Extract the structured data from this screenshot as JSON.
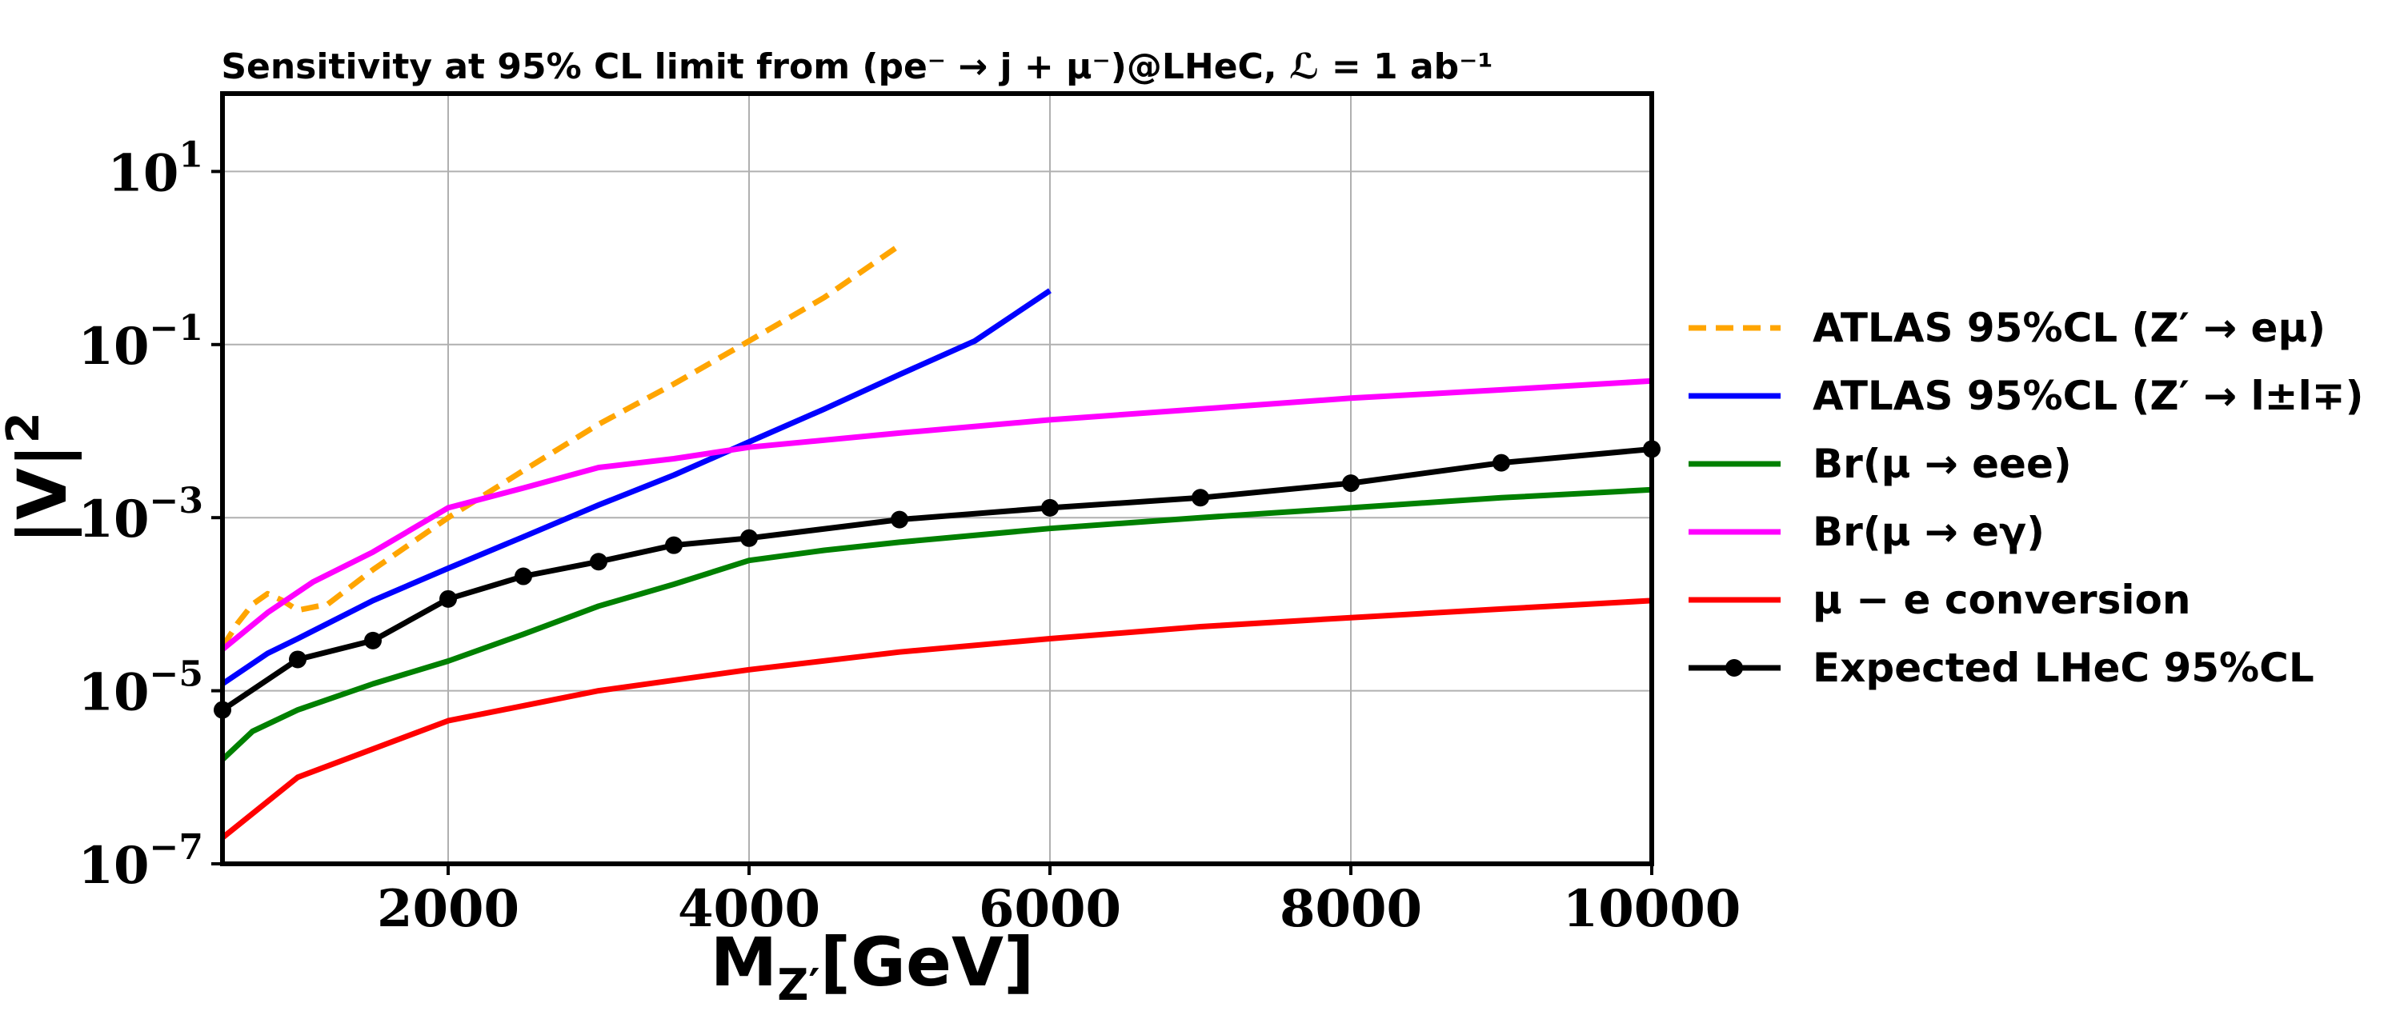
{
  "chart_data": {
    "type": "line",
    "title": "Sensitivity at 95% CL limit from (pe⁻ → j + μ⁻)@LHeC, ℒ = 1 ab⁻¹",
    "xlabel": "M_Z′[GeV]",
    "ylabel": "|V|²",
    "xlim": [
      500,
      10000
    ],
    "ylim_log10": [
      -7,
      1.9
    ],
    "yscale": "log",
    "grid": true,
    "legend_position": "outside-right",
    "x_ticks": [
      {
        "value": 2000,
        "label": "2000"
      },
      {
        "value": 4000,
        "label": "4000"
      },
      {
        "value": 6000,
        "label": "6000"
      },
      {
        "value": 8000,
        "label": "8000"
      },
      {
        "value": 10000,
        "label": "10000"
      }
    ],
    "y_ticks": [
      {
        "exp": 1,
        "label": "10",
        "sup": "1"
      },
      {
        "exp": -1,
        "label": "10",
        "sup": "−1"
      },
      {
        "exp": -3,
        "label": "10",
        "sup": "−3"
      },
      {
        "exp": -5,
        "label": "10",
        "sup": "−5"
      },
      {
        "exp": -7,
        "label": "10",
        "sup": "−7"
      }
    ],
    "series": [
      {
        "name": "ATLAS 95%CL (Z′ → eμ)",
        "color": "#FFA500",
        "style": "dashed",
        "x": [
          500,
          600,
          700,
          800,
          900,
          1000,
          1200,
          1500,
          2000,
          2500,
          3000,
          3500,
          4000,
          4500,
          5000
        ],
        "y": [
          3.2e-05,
          6e-05,
          0.0001,
          0.000132,
          0.00011,
          8.5e-05,
          0.0001,
          0.00025,
          0.001,
          0.0035,
          0.012,
          0.035,
          0.11,
          0.35,
          1.4
        ]
      },
      {
        "name": "ATLAS 95%CL (Z′ → l±l∓)",
        "color": "#0000FF",
        "style": "solid",
        "x": [
          500,
          800,
          1000,
          1500,
          2000,
          2500,
          3000,
          3500,
          4000,
          4500,
          5000,
          5500,
          6000
        ],
        "y": [
          1.2e-05,
          2.7e-05,
          4e-05,
          0.00011,
          0.00026,
          0.0006,
          0.0014,
          0.0031,
          0.0075,
          0.018,
          0.045,
          0.11,
          0.42
        ]
      },
      {
        "name": "Br(μ → eee)",
        "color": "#008000",
        "style": "solid",
        "x": [
          500,
          700,
          1000,
          1500,
          2000,
          2500,
          3000,
          3500,
          4000,
          4500,
          5000,
          6000,
          7000,
          8000,
          9000,
          10000
        ],
        "y": [
          1.6e-06,
          3.4e-06,
          6e-06,
          1.2e-05,
          2.2e-05,
          4.5e-05,
          9.5e-05,
          0.00017,
          0.00032,
          0.00042,
          0.00052,
          0.00075,
          0.001,
          0.0013,
          0.0017,
          0.0021
        ]
      },
      {
        "name": "Br(μ → eγ)",
        "color": "#FF00FF",
        "style": "solid",
        "x": [
          500,
          800,
          1100,
          1500,
          2000,
          2500,
          3000,
          3500,
          4000,
          5000,
          6000,
          7000,
          8000,
          9000,
          10000
        ],
        "y": [
          3e-05,
          8e-05,
          0.00018,
          0.0004,
          0.0013,
          0.0022,
          0.0038,
          0.0048,
          0.0065,
          0.0095,
          0.0135,
          0.018,
          0.024,
          0.03,
          0.038
        ]
      },
      {
        "name": "μ − e conversion",
        "color": "#FF0000",
        "style": "solid",
        "x": [
          500,
          1000,
          2000,
          3000,
          4000,
          5000,
          6000,
          7000,
          8000,
          9000,
          10000
        ],
        "y": [
          2e-07,
          1e-06,
          4.5e-06,
          1e-05,
          1.75e-05,
          2.8e-05,
          4e-05,
          5.5e-05,
          7e-05,
          8.8e-05,
          0.00011
        ]
      },
      {
        "name": "Expected LHeC 95%CL",
        "color": "#000000",
        "style": "solid",
        "markers": true,
        "x": [
          500,
          1000,
          1500,
          2000,
          2500,
          3000,
          3500,
          4000,
          5000,
          6000,
          7000,
          8000,
          9000,
          10000
        ],
        "y": [
          6e-06,
          2.3e-05,
          3.8e-05,
          0.000115,
          0.00021,
          0.00031,
          0.00048,
          0.00058,
          0.00095,
          0.0013,
          0.0017,
          0.0025,
          0.0043,
          0.0062
        ]
      }
    ]
  }
}
